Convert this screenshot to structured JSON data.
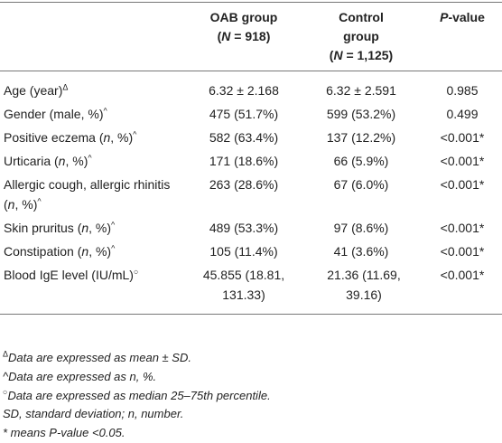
{
  "table": {
    "header": [
      [
        "OAB group",
        "(",
        "N",
        " = 918)"
      ],
      [
        "Control",
        "group",
        "(",
        "N",
        " = 1,125)"
      ],
      [
        "P",
        "-value"
      ]
    ],
    "rows": [
      {
        "label": [
          "Age (year)",
          "Δ"
        ],
        "oab": "6.32 ± 2.168",
        "control": "6.32 ± 2.591",
        "p": "0.985"
      },
      {
        "label": [
          "Gender (male, %)",
          "^"
        ],
        "oab": "475 (51.7%)",
        "control": "599 (53.2%)",
        "p": "0.499"
      },
      {
        "label": [
          "Positive eczema (",
          "n",
          ", %)",
          "^"
        ],
        "oab": "582 (63.4%)",
        "control": "137 (12.2%)",
        "p": "<0.001*"
      },
      {
        "label": [
          "Urticaria (",
          "n",
          ", %)",
          "^"
        ],
        "oab": "171 (18.6%)",
        "control": "66 (5.9%)",
        "p": "<0.001*"
      },
      {
        "label": [
          "Allergic cough, allergic rhinitis (",
          "n",
          ", %)",
          "^"
        ],
        "oab": "263 (28.6%)",
        "control": "67 (6.0%)",
        "p": "<0.001*"
      },
      {
        "label": [
          "Skin pruritus (",
          "n",
          ", %)",
          "^"
        ],
        "oab": "489 (53.3%)",
        "control": "97 (8.6%)",
        "p": "<0.001*"
      },
      {
        "label": [
          "Constipation (",
          "n",
          ", %)",
          "^"
        ],
        "oab": "105 (11.4%)",
        "control": "41 (3.6%)",
        "p": "<0.001*"
      },
      {
        "label": [
          "Blood IgE level (IU/mL)",
          "○"
        ],
        "oab": "45.855 (18.81, 131.33)",
        "control": "21.36 (11.69, 39.16)",
        "p": "<0.001*"
      }
    ],
    "footnotes": [
      [
        "Δ",
        "Data are expressed as mean ± SD."
      ],
      [
        "^Data are expressed as n, %."
      ],
      [
        "○",
        "Data are expressed as median 25–75th percentile."
      ],
      [
        "SD, standard deviation; n, number."
      ],
      [
        "* means P-value <0.05."
      ]
    ]
  }
}
